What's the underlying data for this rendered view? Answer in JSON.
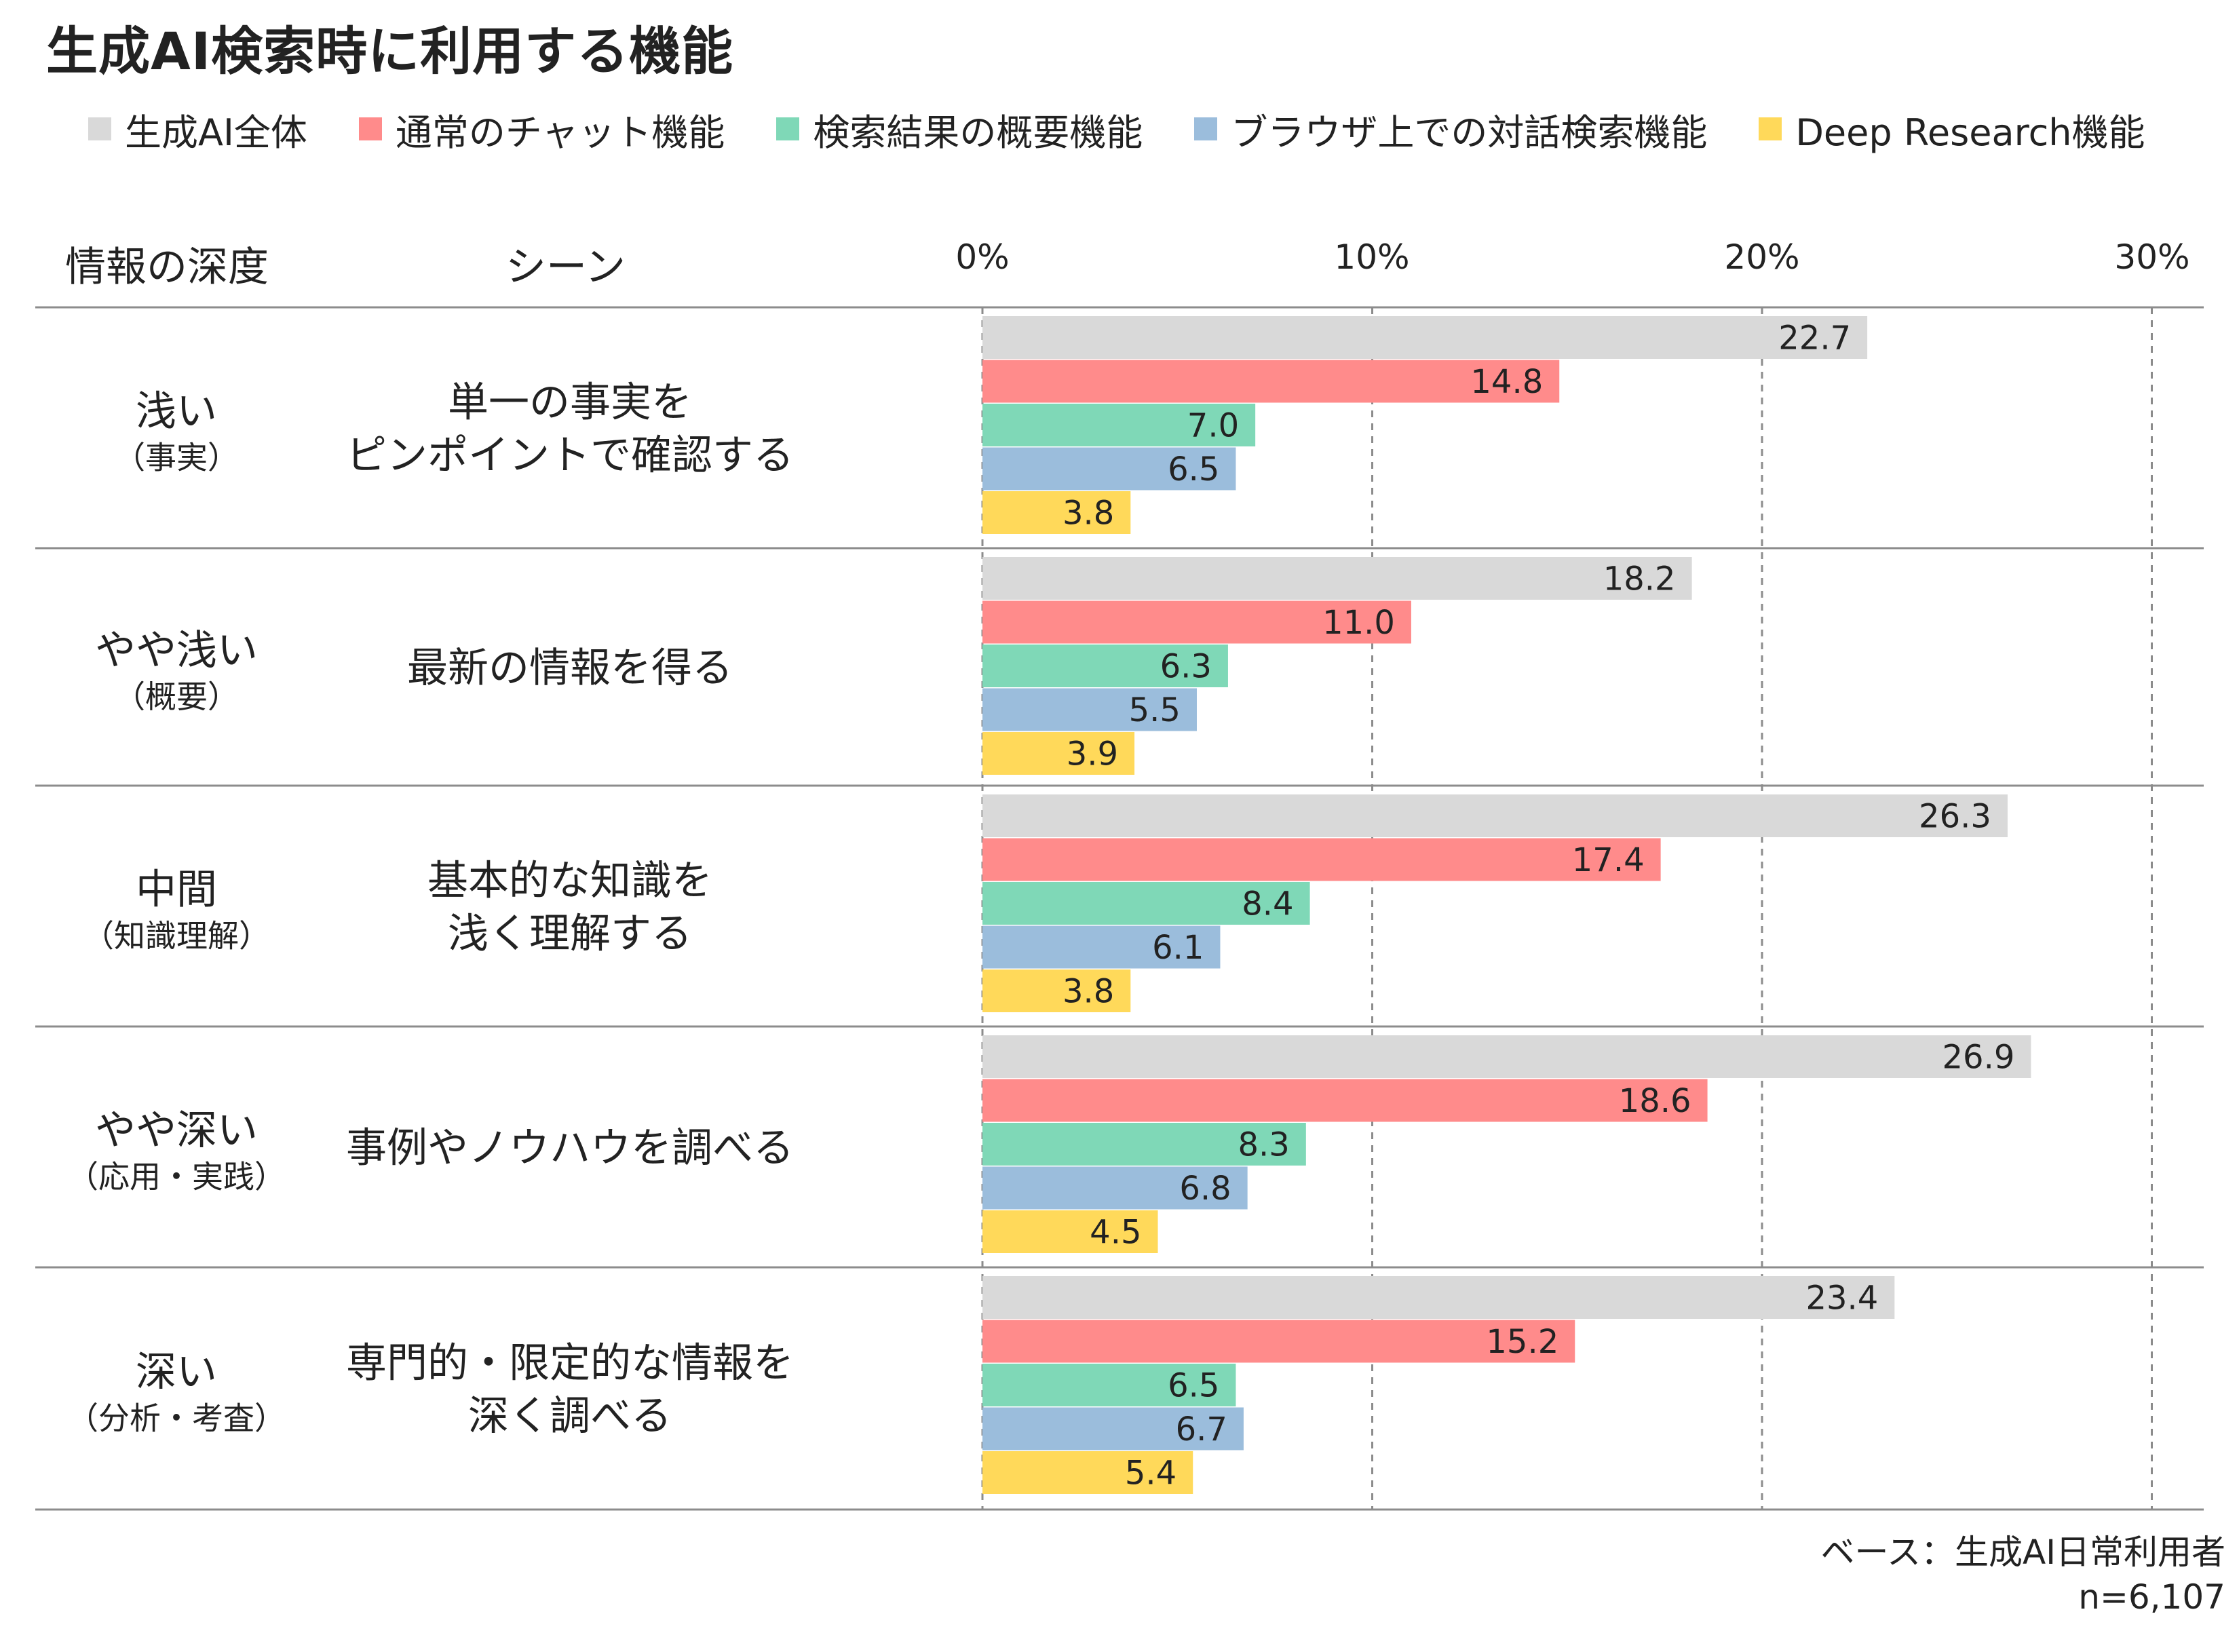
{
  "title": "生成AI検索時に利用する機能",
  "header": {
    "depth_label": "情報の深度",
    "scene_label": "シーン"
  },
  "footnote": {
    "base": "ベース：生成AI日常利用者",
    "n": "n=6,107"
  },
  "colors": {
    "生成AI全体": "#d9d9d9",
    "通常のチャット機能": "#ff8b8b",
    "検索結果の概要機能": "#7fd8b7",
    "ブラウザ上での対話検索機能": "#9bbddc",
    "Deep Research機能": "#ffd95a"
  },
  "chart_data": {
    "type": "bar",
    "orientation": "horizontal",
    "title": "生成AI検索時に利用する機能",
    "xlim": [
      0,
      30
    ],
    "x_ticks": [
      "0%",
      "10%",
      "20%",
      "30%"
    ],
    "grid": true,
    "legend_position": "top",
    "series_names": [
      "生成AI全体",
      "通常のチャット機能",
      "検索結果の概要機能",
      "ブラウザ上での対話検索機能",
      "Deep Research機能"
    ],
    "groups": [
      {
        "depth": "浅い",
        "depth_sub": "（事実）",
        "scene": [
          "単一の事実を",
          "ピンポイントで確認する"
        ],
        "values": [
          22.7,
          14.8,
          7.0,
          6.5,
          3.8
        ],
        "labels": [
          "22.7",
          "14.8",
          "7.0",
          "6.5",
          "3.8"
        ]
      },
      {
        "depth": "やや浅い",
        "depth_sub": "（概要）",
        "scene": [
          "最新の情報を得る"
        ],
        "values": [
          18.2,
          11.0,
          6.3,
          5.5,
          3.9
        ],
        "labels": [
          "18.2",
          "11.0",
          "6.3",
          "5.5",
          "3.9"
        ]
      },
      {
        "depth": "中間",
        "depth_sub": "（知識理解）",
        "scene": [
          "基本的な知識を",
          "浅く理解する"
        ],
        "values": [
          26.3,
          17.4,
          8.4,
          6.1,
          3.8
        ],
        "labels": [
          "26.3",
          "17.4",
          "8.4",
          "6.1",
          "3.8"
        ]
      },
      {
        "depth": "やや深い",
        "depth_sub": "（応用・実践）",
        "scene": [
          "事例やノウハウを調べる"
        ],
        "values": [
          26.9,
          18.6,
          8.3,
          6.8,
          4.5
        ],
        "labels": [
          "26.9",
          "18.6",
          "8.3",
          "6.8",
          "4.5"
        ]
      },
      {
        "depth": "深い",
        "depth_sub": "（分析・考査）",
        "scene": [
          "専門的・限定的な情報を",
          "深く調べる"
        ],
        "values": [
          23.4,
          15.2,
          6.5,
          6.7,
          5.4
        ],
        "labels": [
          "23.4",
          "15.2",
          "6.5",
          "6.7",
          "5.4"
        ]
      }
    ]
  }
}
